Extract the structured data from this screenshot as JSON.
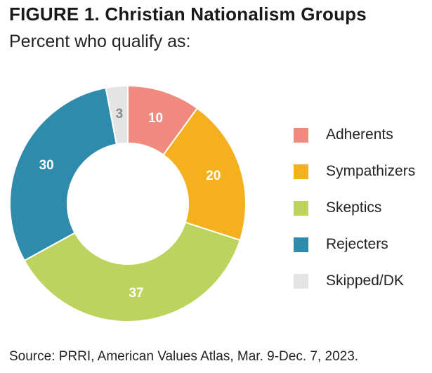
{
  "figure": {
    "title": "FIGURE 1.  Christian Nationalism Groups",
    "subtitle": "Percent who qualify as:",
    "source": "Source: PRRI, American Values Atlas, Mar. 9-Dec. 7, 2023."
  },
  "chart_data": {
    "type": "pie",
    "donut": true,
    "title": "FIGURE 1.  Christian Nationalism Groups",
    "subtitle": "Percent who qualify as:",
    "legend_position": "right",
    "series": [
      {
        "name": "Adherents",
        "value": 10,
        "color": "#f08a7e",
        "label_color": "#ffffff"
      },
      {
        "name": "Sympathizers",
        "value": 20,
        "color": "#f5b01e",
        "label_color": "#ffffff"
      },
      {
        "name": "Skeptics",
        "value": 37,
        "color": "#bcd35e",
        "label_color": "#ffffff"
      },
      {
        "name": "Rejecters",
        "value": 30,
        "color": "#2f8bab",
        "label_color": "#ffffff"
      },
      {
        "name": "Skipped/DK",
        "value": 3,
        "color": "#e4e4e4",
        "label_color": "#8a8a8a"
      }
    ]
  }
}
